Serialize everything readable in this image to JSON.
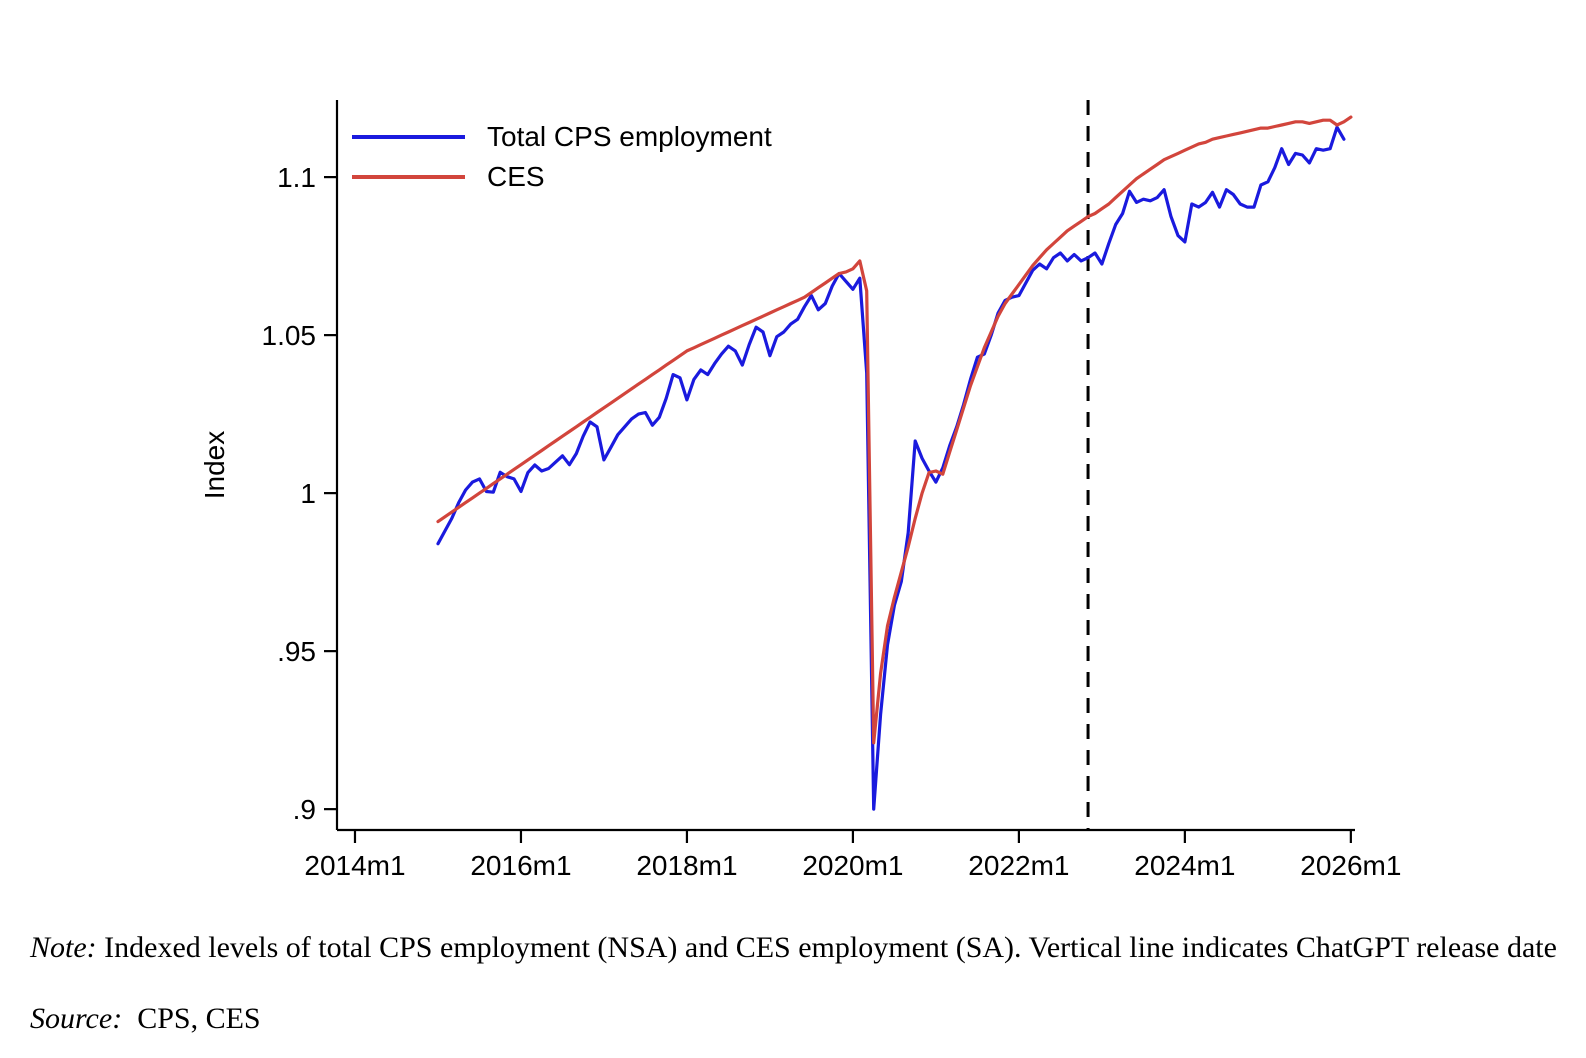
{
  "chart_data": {
    "type": "line",
    "title": "",
    "xlabel": "",
    "ylabel": "Index",
    "grid": false,
    "legend_position": "top-left-inside",
    "x_ticks": [
      "2014m1",
      "2016m1",
      "2018m1",
      "2020m1",
      "2022m1",
      "2024m1",
      "2026m1"
    ],
    "y_ticks": [
      ".9",
      ".95",
      "1",
      "1.05",
      "1.1"
    ],
    "y_tick_values": [
      0.9,
      0.95,
      1.0,
      1.05,
      1.1
    ],
    "ylim": [
      0.8934,
      1.1244
    ],
    "xlim_months_from_2015m1": [
      -14.6,
      132.6
    ],
    "vline": {
      "x": "2022m11",
      "style": "dashed",
      "color": "#000000",
      "meaning": "ChatGPT release date"
    },
    "frequency": "monthly",
    "series": [
      {
        "name": "Total CPS employment",
        "color": "#1a1ade",
        "x_start": "2015m1",
        "values": [
          0.984,
          0.988,
          0.992,
          0.997,
          1.001,
          1.0035,
          1.0045,
          1.0005,
          1.0003,
          1.0066,
          1.0052,
          1.0045,
          1.0005,
          1.0065,
          1.0089,
          1.007,
          1.0078,
          1.0098,
          1.0118,
          1.009,
          1.0125,
          1.018,
          1.0225,
          1.021,
          1.0105,
          1.0145,
          1.0185,
          1.021,
          1.0235,
          1.025,
          1.0255,
          1.0215,
          1.024,
          1.03,
          1.0375,
          1.0365,
          1.0295,
          1.036,
          1.039,
          1.0375,
          1.041,
          1.044,
          1.0465,
          1.045,
          1.0405,
          1.047,
          1.0525,
          1.051,
          1.0435,
          1.0495,
          1.051,
          1.0535,
          1.055,
          1.059,
          1.0625,
          1.058,
          1.06,
          1.0655,
          1.0695,
          1.067,
          1.0645,
          1.068,
          1.038,
          0.9,
          0.93,
          0.952,
          0.9645,
          0.972,
          0.9875,
          1.0165,
          1.011,
          1.007,
          1.0035,
          1.008,
          1.015,
          1.021,
          1.028,
          1.036,
          1.043,
          1.044,
          1.05,
          1.057,
          1.061,
          1.062,
          1.0625,
          1.0665,
          1.0705,
          1.0725,
          1.071,
          1.0745,
          1.076,
          1.0735,
          1.0755,
          1.0735,
          1.0745,
          1.076,
          1.0725,
          1.079,
          1.085,
          1.0885,
          1.0955,
          1.092,
          1.093,
          1.0925,
          1.0935,
          1.096,
          1.0875,
          1.0815,
          1.0795,
          1.0915,
          1.0905,
          1.092,
          1.0952,
          1.0905,
          1.096,
          1.0945,
          1.0915,
          1.0905,
          1.0905,
          1.0975,
          1.0985,
          1.103,
          1.109,
          1.104,
          1.1075,
          1.107,
          1.1045,
          1.109,
          1.1085,
          1.109,
          1.1158,
          1.112
        ]
      },
      {
        "name": "CES",
        "color": "#d2453c",
        "x_start": "2015m1",
        "values": [
          0.991,
          0.9925,
          0.994,
          0.9955,
          0.997,
          0.9985,
          1.0,
          1.0015,
          1.003,
          1.0045,
          1.006,
          1.0075,
          1.009,
          1.0105,
          1.012,
          1.0135,
          1.015,
          1.0165,
          1.018,
          1.0195,
          1.021,
          1.0225,
          1.024,
          1.0255,
          1.027,
          1.0285,
          1.03,
          1.0315,
          1.033,
          1.0345,
          1.036,
          1.0375,
          1.039,
          1.0405,
          1.042,
          1.0435,
          1.045,
          1.046,
          1.047,
          1.048,
          1.049,
          1.05,
          1.051,
          1.052,
          1.053,
          1.054,
          1.055,
          1.056,
          1.057,
          1.058,
          1.059,
          1.06,
          1.061,
          1.062,
          1.0635,
          1.065,
          1.0665,
          1.068,
          1.0695,
          1.07,
          1.071,
          1.0735,
          1.064,
          0.921,
          0.943,
          0.958,
          0.967,
          0.975,
          0.983,
          0.992,
          1.0,
          1.0065,
          1.007,
          1.006,
          1.013,
          1.02,
          1.027,
          1.034,
          1.04,
          1.046,
          1.051,
          1.056,
          1.06,
          1.063,
          1.066,
          1.069,
          1.072,
          1.0745,
          1.077,
          1.079,
          1.081,
          1.083,
          1.0845,
          1.086,
          1.0875,
          1.0885,
          1.09,
          1.0915,
          1.0935,
          1.0955,
          1.0975,
          1.0995,
          1.101,
          1.1025,
          1.104,
          1.1055,
          1.1065,
          1.1075,
          1.1085,
          1.1095,
          1.1105,
          1.111,
          1.112,
          1.1125,
          1.113,
          1.1135,
          1.114,
          1.1145,
          1.115,
          1.1155,
          1.1155,
          1.116,
          1.1165,
          1.117,
          1.1175,
          1.1175,
          1.117,
          1.1175,
          1.118,
          1.118,
          1.1165,
          1.1175,
          1.119
        ]
      }
    ]
  },
  "legend": {
    "items": [
      {
        "label": "Total CPS employment"
      },
      {
        "label": "CES"
      }
    ]
  },
  "note": {
    "note_label": "Note:",
    "note_text": "Indexed levels of total CPS employment (NSA) and CES employment (SA). Vertical line indicates ChatGPT release date",
    "source_label": "Source:",
    "source_text": "CPS, CES"
  }
}
